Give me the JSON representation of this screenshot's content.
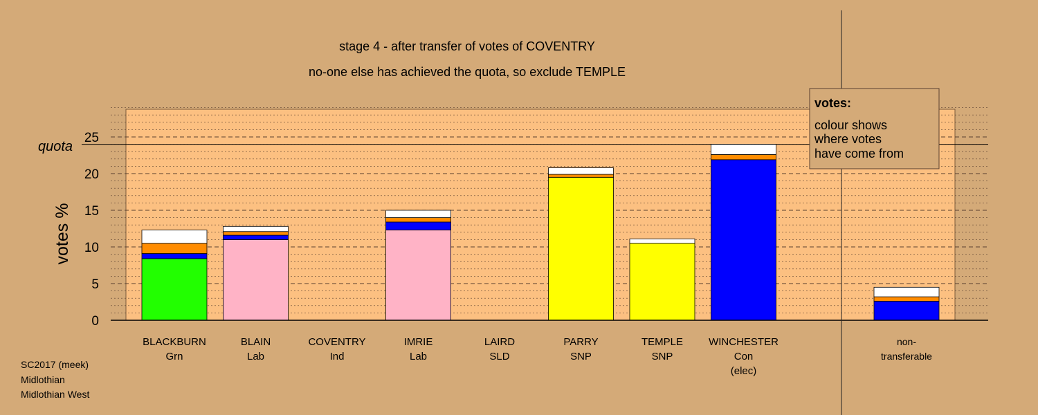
{
  "chart_data": {
    "type": "bar",
    "stacked": true,
    "title": "stage 4 - after transfer of votes of COVENTRY",
    "subtitle": "no-one else has achieved the quota, so exclude TEMPLE",
    "ylabel": "votes %",
    "ylim": [
      0,
      29
    ],
    "yticks": [
      0,
      5,
      10,
      15,
      20,
      25
    ],
    "quota": 24,
    "quota_label": "quota",
    "grid": true,
    "categories": [
      {
        "name": "BLACKBURN",
        "party": "Grn",
        "note": ""
      },
      {
        "name": "BLAIN",
        "party": "Lab",
        "note": ""
      },
      {
        "name": "COVENTRY",
        "party": "Ind",
        "note": ""
      },
      {
        "name": "IMRIE",
        "party": "Lab",
        "note": ""
      },
      {
        "name": "LAIRD",
        "party": "SLD",
        "note": ""
      },
      {
        "name": "PARRY",
        "party": "SNP",
        "note": ""
      },
      {
        "name": "TEMPLE",
        "party": "SNP",
        "note": ""
      },
      {
        "name": "WINCHESTER",
        "party": "Con",
        "note": "(elec)"
      }
    ],
    "nontransferable_label": [
      "non-",
      "transferable"
    ],
    "segment_colors": {
      "green": "#22ff00",
      "pink": "#ffb3c6",
      "yellow": "#ffff00",
      "blue": "#0000ff",
      "orange": "#ff8c00",
      "white": "#ffffff"
    },
    "bars": [
      {
        "segments": [
          {
            "color": "green",
            "value": 8.4
          },
          {
            "color": "blue",
            "value": 0.7
          },
          {
            "color": "orange",
            "value": 1.4
          },
          {
            "color": "white",
            "value": 1.8
          }
        ]
      },
      {
        "segments": [
          {
            "color": "pink",
            "value": 11.0
          },
          {
            "color": "blue",
            "value": 0.6
          },
          {
            "color": "orange",
            "value": 0.5
          },
          {
            "color": "white",
            "value": 0.7
          }
        ]
      },
      {
        "segments": []
      },
      {
        "segments": [
          {
            "color": "pink",
            "value": 12.3
          },
          {
            "color": "blue",
            "value": 1.1
          },
          {
            "color": "orange",
            "value": 0.6
          },
          {
            "color": "white",
            "value": 1.0
          }
        ]
      },
      {
        "segments": []
      },
      {
        "segments": [
          {
            "color": "yellow",
            "value": 19.5
          },
          {
            "color": "orange",
            "value": 0.4
          },
          {
            "color": "white",
            "value": 0.9
          }
        ]
      },
      {
        "segments": [
          {
            "color": "yellow",
            "value": 10.5
          },
          {
            "color": "white",
            "value": 0.6
          }
        ]
      },
      {
        "segments": [
          {
            "color": "blue",
            "value": 21.9
          },
          {
            "color": "orange",
            "value": 0.7
          },
          {
            "color": "white",
            "value": 1.4
          }
        ]
      }
    ],
    "nontransferable": {
      "segments": [
        {
          "color": "blue",
          "value": 2.6
        },
        {
          "color": "orange",
          "value": 0.6
        },
        {
          "color": "white",
          "value": 1.3
        }
      ]
    }
  },
  "legend": {
    "heading": "votes:",
    "lines": [
      "colour shows",
      "where votes",
      "have come from"
    ]
  },
  "footer": {
    "lines": [
      "SC2017 (meek)",
      "Midlothian",
      "Midlothian West"
    ]
  }
}
